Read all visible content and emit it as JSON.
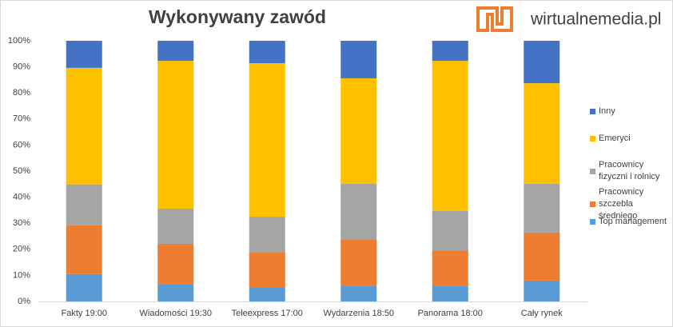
{
  "chart_data": {
    "type": "stacked_bar",
    "title": "Wykonywany zawód",
    "logo_text": "wirtualnemedia.pl",
    "categories": [
      "Fakty 19:00",
      "Wiadomości 19:30",
      "Teleexpress 17:00",
      "Wydarzenia 18:50",
      "Panorama 18:00",
      "Cały rynek"
    ],
    "series": [
      {
        "name": "Top management",
        "color": "#5b9bd5",
        "values": [
          10.5,
          6.7,
          5.2,
          6.1,
          6.1,
          8.0
        ]
      },
      {
        "name": "Pracownicy szczebla średniego",
        "color": "#ed7d31",
        "values": [
          18.7,
          15.4,
          13.5,
          17.8,
          13.5,
          18.4
        ]
      },
      {
        "name": "Pracownicy fizyczni i rolnicy",
        "color": "#a5a5a5",
        "values": [
          15.7,
          13.5,
          13.8,
          21.2,
          15.1,
          18.7
        ]
      },
      {
        "name": "Emeryci",
        "color": "#ffc000",
        "values": [
          44.7,
          56.7,
          58.9,
          40.5,
          57.6,
          38.6
        ]
      },
      {
        "name": "Inny",
        "color": "#4472c4",
        "values": [
          10.4,
          7.7,
          8.6,
          14.4,
          7.7,
          16.3
        ]
      }
    ],
    "ylim": [
      0,
      100
    ],
    "yticks": [
      {
        "value": 0,
        "label": "0%"
      },
      {
        "value": 10,
        "label": "10%"
      },
      {
        "value": 20,
        "label": "20%"
      },
      {
        "value": 30,
        "label": "30%"
      },
      {
        "value": 40,
        "label": "40%"
      },
      {
        "value": 50,
        "label": "50%"
      },
      {
        "value": 60,
        "label": "60%"
      },
      {
        "value": 70,
        "label": "70%"
      },
      {
        "value": 80,
        "label": "80%"
      },
      {
        "value": 90,
        "label": "90%"
      },
      {
        "value": 100,
        "label": "100%"
      }
    ],
    "legend_position": "right"
  }
}
